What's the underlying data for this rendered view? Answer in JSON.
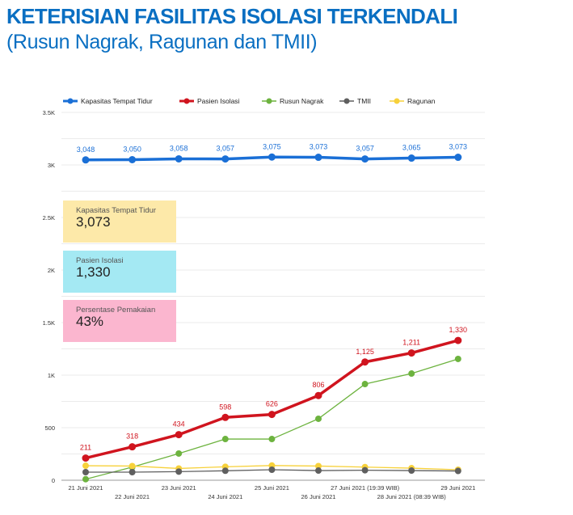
{
  "title": "KETERISIAN FASILITAS ISOLASI TERKENDALI",
  "subtitle": "(Rusun Nagrak, Ragunan dan TMII)",
  "scorecards": [
    {
      "label": "Kapasitas Tempat Tidur",
      "value": "3,073",
      "color": "#fde9a9"
    },
    {
      "label": "Pasien Isolasi",
      "value": "1,330",
      "color": "#a4e9f3"
    },
    {
      "label": "Persentase Pemakaian",
      "value": "43%",
      "color": "#fbb6cf"
    }
  ],
  "chart_data": {
    "type": "line",
    "categories": [
      "21 Juni 2021",
      "22 Juni 2021",
      "23 Juni 2021",
      "24 Juni 2021",
      "25 Juni 2021",
      "26 Juni 2021",
      "27 Juni 2021 (19:39 WIB)",
      "28 Juni 2021 (08:39 WIB)",
      "29 Juni 2021"
    ],
    "ylim": [
      0,
      3500
    ],
    "yticks": [
      {
        "v": 0,
        "label": "0"
      },
      {
        "v": 500,
        "label": "500"
      },
      {
        "v": 1000,
        "label": "1K"
      },
      {
        "v": 1500,
        "label": "1.5K"
      },
      {
        "v": 2000,
        "label": "2K"
      },
      {
        "v": 2500,
        "label": "2.5K"
      },
      {
        "v": 3000,
        "label": "3K"
      },
      {
        "v": 3500,
        "label": "3.5K"
      }
    ],
    "grid": true,
    "legend": "top",
    "series": [
      {
        "name": "Kapasitas Tempat Tidur",
        "color": "#1a6fd6",
        "labeled": true,
        "thick": true,
        "values": [
          3048,
          3050,
          3058,
          3057,
          3075,
          3073,
          3057,
          3065,
          3073
        ],
        "labels": [
          "3,048",
          "3,050",
          "3,058",
          "3,057",
          "3,075",
          "3,073",
          "3,057",
          "3,065",
          "3,073"
        ]
      },
      {
        "name": "Pasien Isolasi",
        "color": "#d0141e",
        "labeled": true,
        "thick": true,
        "values": [
          211,
          318,
          434,
          598,
          626,
          806,
          1125,
          1211,
          1330
        ],
        "labels": [
          "211",
          "318",
          "434",
          "598",
          "626",
          "806",
          "1,125",
          "1,211",
          "1,330"
        ]
      },
      {
        "name": "Rusun Nagrak",
        "color": "#6db33f",
        "labeled": false,
        "thick": false,
        "values": [
          10,
          125,
          254,
          392,
          392,
          585,
          915,
          1015,
          1154
        ]
      },
      {
        "name": "TMII",
        "color": "#5f5f5f",
        "labeled": false,
        "thick": false,
        "values": [
          77,
          77,
          82,
          90,
          100,
          92,
          95,
          92,
          88
        ]
      },
      {
        "name": "Ragunan",
        "color": "#f7d13a",
        "labeled": false,
        "thick": false,
        "values": [
          138,
          135,
          112,
          128,
          140,
          135,
          125,
          115,
          100
        ]
      }
    ]
  }
}
